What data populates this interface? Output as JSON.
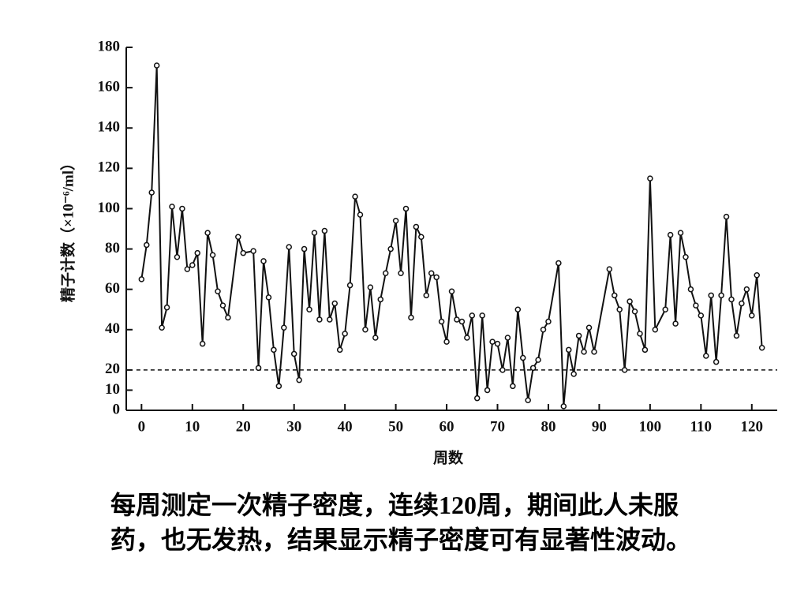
{
  "chart_data": {
    "type": "line",
    "ylabel": "精子计数（×10⁻⁶/ml）",
    "xlabel": "周数",
    "x": [
      0,
      1,
      2,
      3,
      4,
      5,
      6,
      7,
      8,
      9,
      10,
      11,
      12,
      13,
      14,
      15,
      16,
      17,
      19,
      20,
      22,
      23,
      24,
      25,
      26,
      27,
      28,
      29,
      30,
      31,
      32,
      33,
      34,
      35,
      36,
      37,
      38,
      39,
      40,
      41,
      42,
      43,
      44,
      45,
      46,
      47,
      48,
      49,
      50,
      51,
      52,
      53,
      54,
      55,
      56,
      57,
      58,
      59,
      60,
      61,
      62,
      63,
      64,
      65,
      66,
      67,
      68,
      69,
      70,
      71,
      72,
      73,
      74,
      75,
      76,
      77,
      78,
      79,
      80,
      82,
      83,
      84,
      85,
      86,
      87,
      88,
      89,
      92,
      93,
      94,
      95,
      96,
      97,
      98,
      99,
      100,
      101,
      103,
      104,
      105,
      106,
      107,
      108,
      109,
      110,
      111,
      112,
      113,
      114,
      115,
      116,
      117,
      118,
      119,
      120,
      121,
      122
    ],
    "series": [
      {
        "color": "#111111",
        "values": [
          65,
          82,
          108,
          171,
          41,
          51,
          101,
          76,
          100,
          70,
          72,
          78,
          33,
          88,
          77,
          59,
          52,
          46,
          86,
          78,
          79,
          21,
          74,
          56,
          30,
          12,
          41,
          81,
          28,
          15,
          80,
          50,
          88,
          45,
          89,
          45,
          53,
          30,
          38,
          62,
          106,
          97,
          40,
          61,
          36,
          55,
          68,
          80,
          94,
          68,
          100,
          46,
          91,
          86,
          57,
          68,
          66,
          44,
          34,
          59,
          45,
          44,
          36,
          47,
          6,
          47,
          10,
          34,
          33,
          20,
          36,
          12,
          50,
          26,
          5,
          21,
          25,
          40,
          44,
          73,
          2,
          30,
          18,
          37,
          29,
          41,
          29,
          70,
          57,
          50,
          20,
          54,
          49,
          38,
          30,
          115,
          40,
          50,
          87,
          43,
          88,
          76,
          60,
          52,
          47,
          27,
          57,
          24,
          57,
          96,
          55,
          37,
          53,
          60,
          47,
          67,
          31
        ]
      }
    ],
    "reference_line": 20,
    "xlim": [
      -3,
      125
    ],
    "ylim": [
      0,
      180
    ],
    "xticks": [
      0,
      10,
      20,
      30,
      40,
      50,
      60,
      70,
      80,
      90,
      100,
      110,
      120
    ],
    "yticks": [
      0,
      10,
      20,
      40,
      60,
      80,
      100,
      120,
      140,
      160,
      180
    ]
  },
  "caption": "每周测定一次精子密度，连续120周，期间此人未服药，也无发热，结果显示精子密度可有显著性波动。"
}
